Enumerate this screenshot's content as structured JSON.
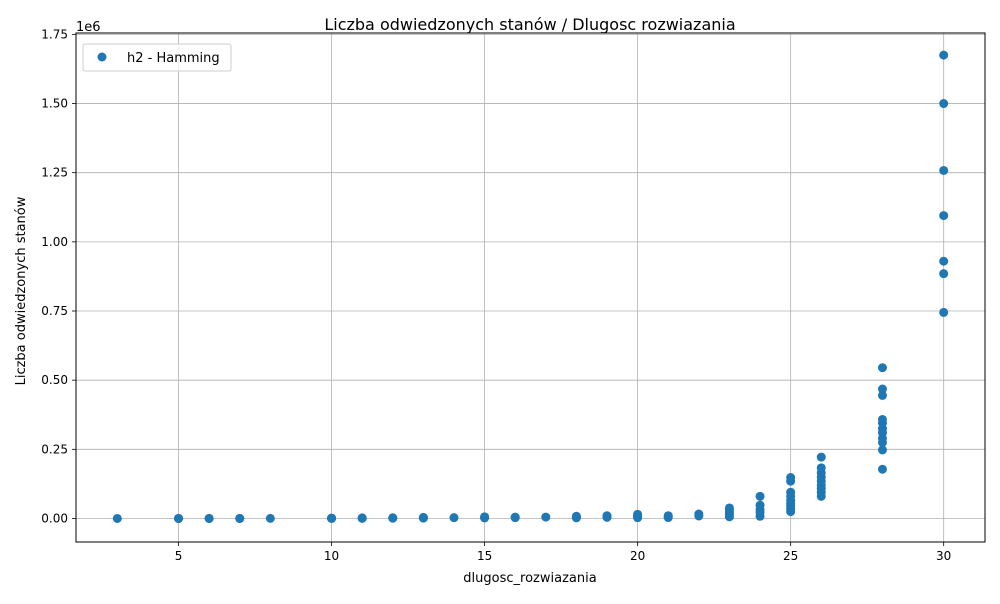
{
  "chart_data": {
    "type": "scatter",
    "title": "Liczba odwiedzonych stanów / Dlugosc rozwiazania",
    "xlabel": "dlugosc_rozwiazania",
    "ylabel": "Liczba odwiedzonych stanów",
    "y_offset_label": "1e6",
    "xlim": [
      1.65,
      31.35
    ],
    "ylim": [
      -85000,
      1755000
    ],
    "x_ticks": [
      5,
      10,
      15,
      20,
      25,
      30
    ],
    "x_tick_labels": [
      "5",
      "10",
      "15",
      "20",
      "25",
      "30"
    ],
    "y_ticks": [
      0,
      250000,
      500000,
      750000,
      1000000,
      1250000,
      1500000,
      1750000
    ],
    "y_tick_labels": [
      "0.00",
      "0.25",
      "0.50",
      "0.75",
      "1.00",
      "1.25",
      "1.50",
      "1.75"
    ],
    "grid": true,
    "legend_position": "top-left",
    "series": [
      {
        "name": "h2 - Hamming",
        "color": "#1f77b4",
        "points": [
          [
            3,
            30
          ],
          [
            5,
            20
          ],
          [
            5,
            60
          ],
          [
            5,
            120
          ],
          [
            6,
            80
          ],
          [
            6,
            200
          ],
          [
            7,
            150
          ],
          [
            7,
            300
          ],
          [
            8,
            400
          ],
          [
            10,
            300
          ],
          [
            10,
            800
          ],
          [
            10,
            1500
          ],
          [
            11,
            600
          ],
          [
            11,
            1200
          ],
          [
            11,
            2000
          ],
          [
            12,
            1000
          ],
          [
            12,
            2500
          ],
          [
            13,
            1500
          ],
          [
            13,
            2500
          ],
          [
            13,
            4000
          ],
          [
            14,
            3000
          ],
          [
            15,
            2000
          ],
          [
            15,
            4000
          ],
          [
            15,
            6000
          ],
          [
            16,
            3000
          ],
          [
            16,
            5000
          ],
          [
            17,
            5000
          ],
          [
            18,
            2500
          ],
          [
            18,
            5000
          ],
          [
            18,
            8000
          ],
          [
            19,
            4000
          ],
          [
            19,
            7000
          ],
          [
            19,
            10000
          ],
          [
            20,
            3000
          ],
          [
            20,
            7000
          ],
          [
            20,
            12000
          ],
          [
            20,
            15000
          ],
          [
            21,
            3500
          ],
          [
            21,
            6000
          ],
          [
            21,
            10000
          ],
          [
            22,
            9000
          ],
          [
            22,
            16000
          ],
          [
            23,
            6000
          ],
          [
            23,
            14000
          ],
          [
            23,
            22000
          ],
          [
            23,
            30000
          ],
          [
            23,
            38000
          ],
          [
            24,
            8000
          ],
          [
            24,
            22000
          ],
          [
            24,
            32000
          ],
          [
            24,
            48000
          ],
          [
            24,
            80000
          ],
          [
            25,
            25000
          ],
          [
            25,
            35000
          ],
          [
            25,
            45000
          ],
          [
            25,
            55000
          ],
          [
            25,
            65000
          ],
          [
            25,
            80000
          ],
          [
            25,
            95000
          ],
          [
            25,
            135000
          ],
          [
            25,
            148000
          ],
          [
            26,
            80000
          ],
          [
            26,
            95000
          ],
          [
            26,
            108000
          ],
          [
            26,
            120000
          ],
          [
            26,
            135000
          ],
          [
            26,
            150000
          ],
          [
            26,
            165000
          ],
          [
            26,
            183000
          ],
          [
            26,
            222000
          ],
          [
            28,
            178000
          ],
          [
            28,
            248000
          ],
          [
            28,
            275000
          ],
          [
            28,
            290000
          ],
          [
            28,
            310000
          ],
          [
            28,
            325000
          ],
          [
            28,
            345000
          ],
          [
            28,
            358000
          ],
          [
            28,
            445000
          ],
          [
            28,
            468000
          ],
          [
            28,
            545000
          ],
          [
            30,
            745000
          ],
          [
            30,
            885000
          ],
          [
            30,
            930000
          ],
          [
            30,
            1095000
          ],
          [
            30,
            1258000
          ],
          [
            30,
            1500000
          ],
          [
            30,
            1675000
          ]
        ]
      }
    ]
  }
}
